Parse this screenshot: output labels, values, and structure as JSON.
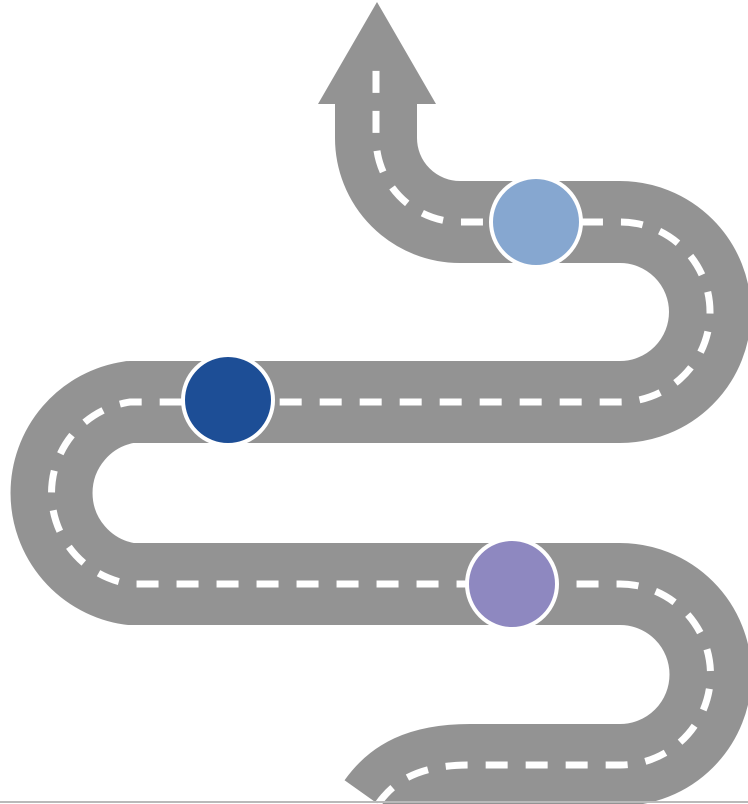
{
  "diagram": {
    "type": "winding-road-roadmap",
    "direction": "upward",
    "colors": {
      "background": "#ffffff",
      "road": "#939393",
      "lane_marking": "#ffffff",
      "marker_outline": "#ffffff",
      "bottom_rule": "#b9b9b9"
    },
    "milestones": [
      {
        "position": "lower",
        "color": "#8e88c0"
      },
      {
        "position": "middle",
        "color": "#1d4e96"
      },
      {
        "position": "upper",
        "color": "#86a7d0"
      }
    ],
    "icons": [
      "up-arrow-icon"
    ]
  }
}
